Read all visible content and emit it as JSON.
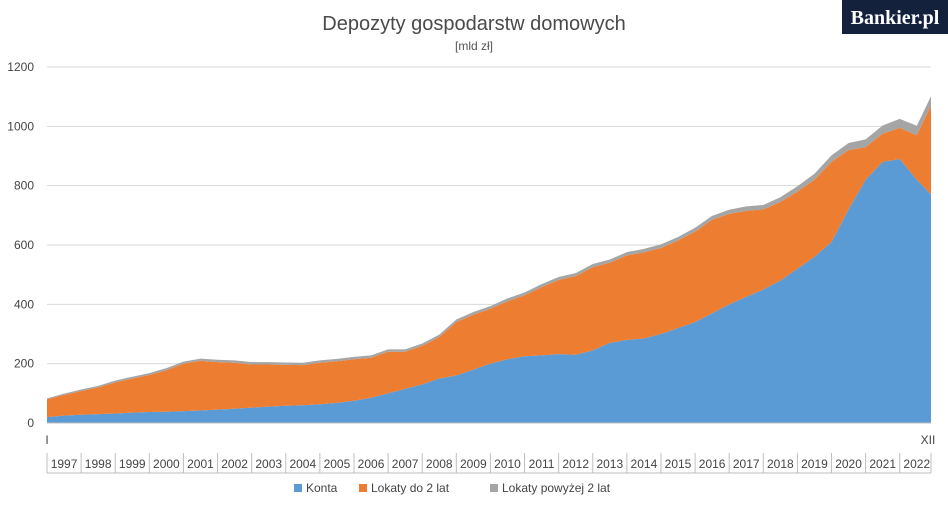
{
  "brand": {
    "name": "Bankier.pl",
    "bg_color": "#14213d"
  },
  "chart_data": {
    "type": "area",
    "stacked": true,
    "title": "Depozyty gospodarstw domowych",
    "subtitle": "[mld zł]",
    "xlabel": "",
    "ylabel": "",
    "ylim": [
      0,
      1200
    ],
    "y_ticks": [
      0,
      200,
      400,
      600,
      800,
      1000,
      1200
    ],
    "grid": true,
    "legend_position": "bottom",
    "x_start_label": "I",
    "x_end_label": "XII",
    "categories": [
      "1997",
      "1998",
      "1999",
      "2000",
      "2001",
      "2002",
      "2003",
      "2004",
      "2005",
      "2006",
      "2007",
      "2008",
      "2009",
      "2010",
      "2011",
      "2012",
      "2013",
      "2014",
      "2015",
      "2016",
      "2017",
      "2018",
      "2019",
      "2020",
      "2021",
      "2022"
    ],
    "x": [
      "1997-01",
      "1997-07",
      "1998-01",
      "1998-07",
      "1999-01",
      "1999-07",
      "2000-01",
      "2000-07",
      "2001-01",
      "2001-07",
      "2002-01",
      "2002-07",
      "2003-01",
      "2003-07",
      "2004-01",
      "2004-07",
      "2005-01",
      "2005-07",
      "2006-01",
      "2006-07",
      "2007-01",
      "2007-07",
      "2008-01",
      "2008-07",
      "2009-01",
      "2009-07",
      "2010-01",
      "2010-07",
      "2011-01",
      "2011-07",
      "2012-01",
      "2012-07",
      "2013-01",
      "2013-07",
      "2014-01",
      "2014-07",
      "2015-01",
      "2015-07",
      "2016-01",
      "2016-07",
      "2017-01",
      "2017-07",
      "2018-01",
      "2018-07",
      "2019-01",
      "2019-07",
      "2020-01",
      "2020-07",
      "2021-01",
      "2021-07",
      "2022-01",
      "2022-07",
      "2022-12"
    ],
    "series": [
      {
        "name": "Konta",
        "color": "#5b9bd5",
        "values": [
          20,
          25,
          28,
          30,
          32,
          35,
          37,
          38,
          40,
          42,
          45,
          48,
          52,
          55,
          58,
          60,
          63,
          68,
          75,
          85,
          100,
          115,
          130,
          150,
          160,
          180,
          200,
          215,
          225,
          228,
          232,
          230,
          245,
          270,
          280,
          285,
          300,
          320,
          340,
          370,
          400,
          425,
          450,
          480,
          520,
          560,
          610,
          720,
          820,
          880,
          890,
          820,
          770
        ]
      },
      {
        "name": "Lokaty do 2 lat",
        "color": "#ed7d31",
        "values": [
          60,
          70,
          80,
          90,
          105,
          115,
          125,
          140,
          160,
          168,
          160,
          155,
          145,
          142,
          138,
          135,
          140,
          140,
          140,
          135,
          140,
          125,
          130,
          140,
          180,
          185,
          185,
          195,
          205,
          230,
          250,
          265,
          280,
          270,
          285,
          290,
          290,
          295,
          305,
          315,
          305,
          290,
          270,
          265,
          260,
          260,
          270,
          200,
          110,
          95,
          105,
          150,
          300
        ]
      },
      {
        "name": "Lokaty powyżej 2 lat",
        "color": "#a5a5a5",
        "values": [
          3,
          4,
          5,
          5,
          6,
          6,
          6,
          7,
          7,
          7,
          8,
          8,
          8,
          8,
          8,
          8,
          8,
          8,
          8,
          8,
          8,
          8,
          8,
          8,
          9,
          9,
          9,
          10,
          10,
          10,
          10,
          10,
          11,
          11,
          11,
          12,
          12,
          12,
          13,
          13,
          14,
          15,
          15,
          16,
          18,
          20,
          22,
          24,
          26,
          28,
          30,
          32,
          32
        ]
      }
    ]
  }
}
